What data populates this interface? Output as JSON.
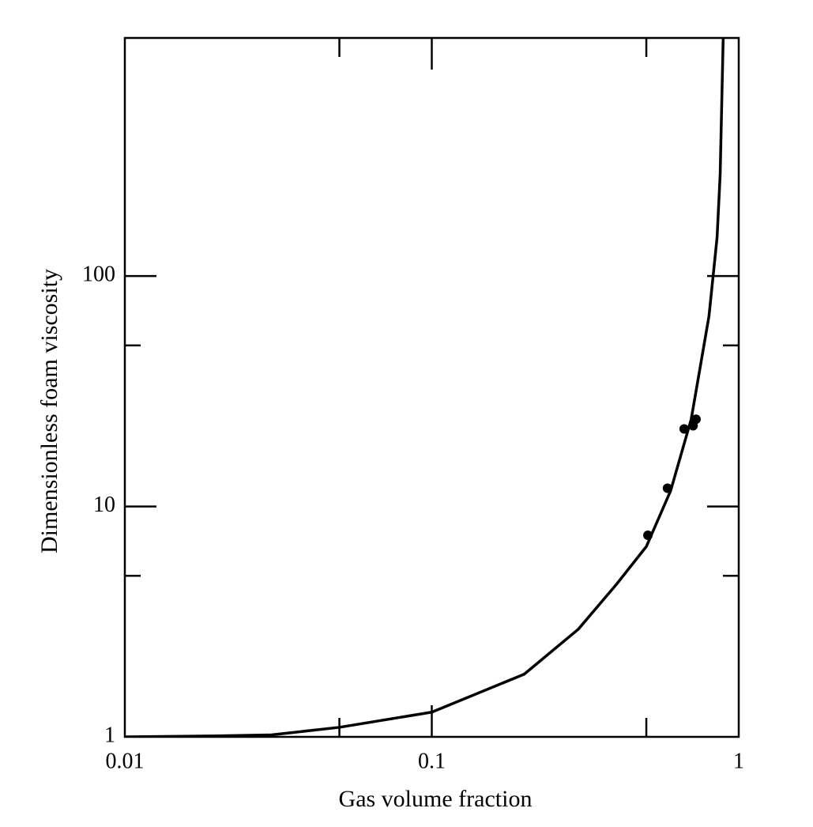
{
  "chart_data": {
    "type": "line",
    "x_label": "Gas volume fraction",
    "y_label": "Dimensionless foam viscosity",
    "log_x": true,
    "log_y": true,
    "xlim": [
      0.01,
      1
    ],
    "ylim": [
      1,
      1080
    ],
    "xticks": [
      0.01,
      0.1,
      1
    ],
    "yticks": [
      1,
      10,
      100
    ],
    "xminor_ticks": [
      0.05,
      0.5
    ],
    "yminor_ticks": [
      5,
      50
    ],
    "series": [
      {
        "type": "line",
        "color": "#000000",
        "x": [
          0.01,
          0.02,
          0.03,
          0.05,
          0.1,
          0.2,
          0.3,
          0.4,
          0.5,
          0.6,
          0.7,
          0.8,
          0.85,
          0.87,
          0.89
        ],
        "values": [
          1.0,
          1.01,
          1.02,
          1.1,
          1.28,
          1.87,
          2.93,
          4.6,
          6.7,
          11.7,
          23.9,
          67,
          147,
          276,
          1080
        ]
      },
      {
        "type": "scatter",
        "color": "#000000",
        "x": [
          0.506,
          0.586,
          0.664,
          0.71,
          0.726
        ],
        "values": [
          7.5,
          12.0,
          21.7,
          22.4,
          23.9
        ]
      }
    ]
  }
}
